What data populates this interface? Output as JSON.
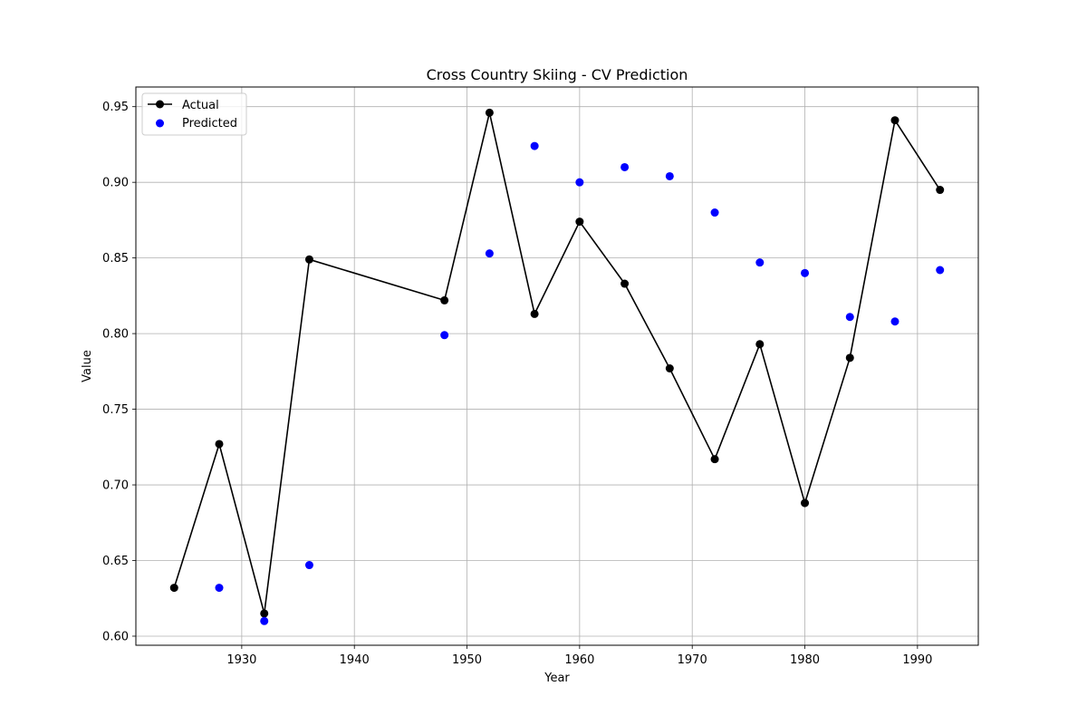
{
  "chart_data": {
    "type": "line",
    "title": "Cross Country Skiing - CV Prediction",
    "xlabel": "Year",
    "ylabel": "Value",
    "xlim": [
      1920.6,
      1995.4
    ],
    "ylim": [
      0.594,
      0.963
    ],
    "xticks": [
      1930,
      1940,
      1950,
      1960,
      1970,
      1980,
      1990
    ],
    "yticks": [
      0.6,
      0.65,
      0.7,
      0.75,
      0.8,
      0.85,
      0.9,
      0.95
    ],
    "grid": true,
    "legend_position": "top-left",
    "series": [
      {
        "name": "Actual",
        "style": "line-with-markers",
        "color": "#000000",
        "x": [
          1924,
          1928,
          1932,
          1936,
          1948,
          1952,
          1956,
          1960,
          1964,
          1968,
          1972,
          1976,
          1980,
          1984,
          1988,
          1992
        ],
        "y": [
          0.632,
          0.727,
          0.615,
          0.849,
          0.822,
          0.946,
          0.813,
          0.874,
          0.833,
          0.777,
          0.717,
          0.793,
          0.688,
          0.784,
          0.941,
          0.895
        ]
      },
      {
        "name": "Predicted",
        "style": "scatter",
        "color": "#0000ff",
        "x": [
          1928,
          1932,
          1936,
          1948,
          1952,
          1956,
          1960,
          1964,
          1968,
          1972,
          1976,
          1980,
          1984,
          1988,
          1992
        ],
        "y": [
          0.632,
          0.61,
          0.647,
          0.799,
          0.853,
          0.924,
          0.9,
          0.91,
          0.904,
          0.88,
          0.847,
          0.84,
          0.811,
          0.808,
          0.842
        ]
      }
    ]
  }
}
